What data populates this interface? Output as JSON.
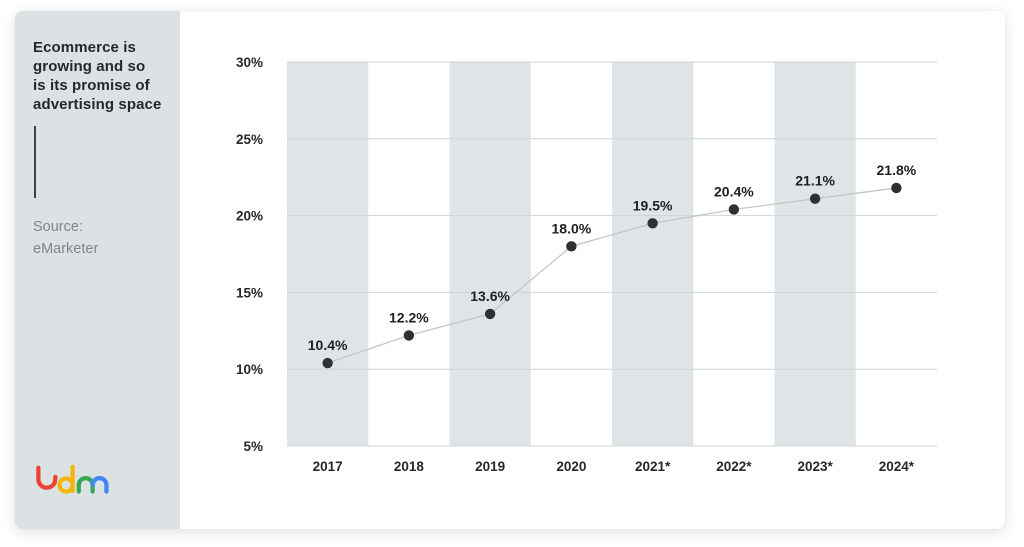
{
  "sidebar": {
    "title": "Ecommerce is\ngrowing and so\nis its promise of\nadvertising space",
    "source": "Source:\neMarketer",
    "logo": {
      "name": "ldm",
      "colors": {
        "red": "#ea4335",
        "yellow": "#f5b60a",
        "green": "#34a853",
        "blue": "#4285f4"
      }
    }
  },
  "chart_data": {
    "type": "line",
    "title": "",
    "xlabel": "",
    "ylabel": "",
    "categories": [
      "2017",
      "2018",
      "2019",
      "2020",
      "2021*",
      "2022*",
      "2023*",
      "2024*"
    ],
    "values": [
      10.4,
      12.2,
      13.6,
      18.0,
      19.5,
      20.4,
      21.1,
      21.8
    ],
    "point_labels": [
      "10.4%",
      "12.2%",
      "13.6%",
      "18.0%",
      "19.5%",
      "20.4%",
      "21.1%",
      "21.8%"
    ],
    "ylim": [
      5,
      30
    ],
    "yticks": [
      30,
      25,
      20,
      15,
      10,
      5
    ],
    "ytick_labels": [
      "30%",
      "25%",
      "20%",
      "15%",
      "10%",
      "5%"
    ],
    "grid": true,
    "legend": "none",
    "band_columns": [
      0,
      2,
      4,
      6
    ],
    "colors": {
      "band": "#dfe4e7",
      "grid": "#cfd3d6",
      "line": "#c2c6c9",
      "dot": "#2e3134",
      "sidebar_bg": "#dce1e4"
    }
  }
}
